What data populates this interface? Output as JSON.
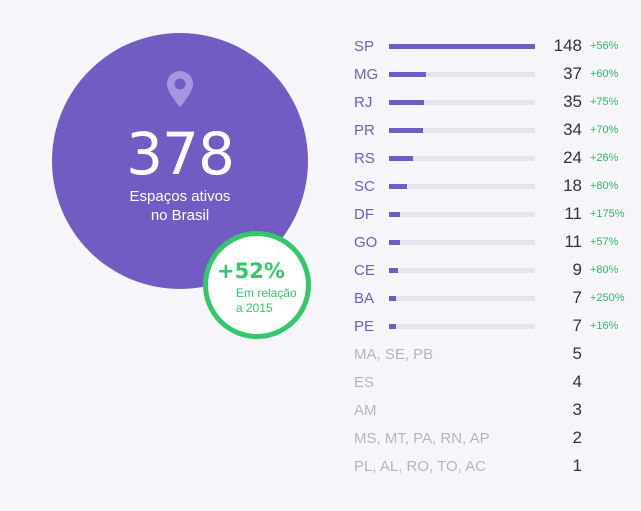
{
  "summary": {
    "total": "378",
    "label_line1": "Espaços ativos",
    "label_line2": "no Brasil",
    "growth": "+52%",
    "growth_caption_line1": "Em relação",
    "growth_caption_line2": "a 2015"
  },
  "colors": {
    "accent": "#725bc3",
    "positive": "#33c86a",
    "muted": "#b4b4bf"
  },
  "chart_data": {
    "type": "bar",
    "orientation": "horizontal",
    "xlim": [
      0,
      148
    ],
    "categories": [
      "SP",
      "MG",
      "RJ",
      "PR",
      "RS",
      "SC",
      "DF",
      "GO",
      "CE",
      "BA",
      "PE",
      "MA, SE, PB",
      "ES",
      "AM",
      "MS, MT, PA, RN, AP",
      "PL, AL, RO, TO, AC"
    ],
    "values": [
      148,
      37,
      35,
      34,
      24,
      18,
      11,
      11,
      9,
      7,
      7,
      5,
      4,
      3,
      2,
      1
    ],
    "values_text": [
      "148",
      "37",
      "35",
      "34",
      "24",
      "18",
      "11",
      "11",
      "9",
      "7",
      "7",
      "5",
      "4",
      "3",
      "2",
      "1"
    ],
    "changes": [
      "+56%",
      "+60%",
      "+75%",
      "+70%",
      "+26%",
      "+80%",
      "+175%",
      "+57%",
      "+80%",
      "+250%",
      "+16%",
      "",
      "",
      "",
      "",
      ""
    ],
    "has_bar": [
      true,
      true,
      true,
      true,
      true,
      true,
      true,
      true,
      true,
      true,
      true,
      false,
      false,
      false,
      false,
      false
    ]
  }
}
